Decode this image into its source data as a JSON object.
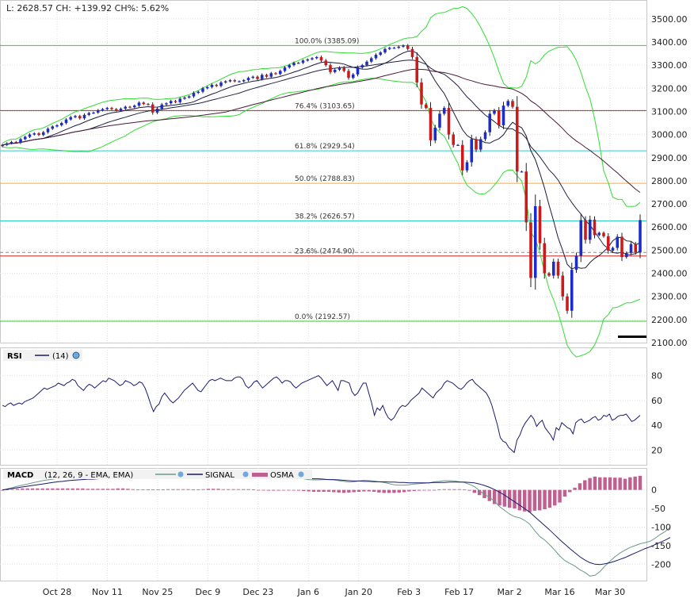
{
  "header": {
    "quote_text": "L: 2628.57 CH: +139.92 CH%: 5.62%"
  },
  "chart_data": [
    {
      "type": "candlestick",
      "panel": "price",
      "y_ticks": [
        "3500.00",
        "3400.00",
        "3300.00",
        "3200.00",
        "3100.00",
        "3000.00",
        "2900.00",
        "2800.00",
        "2700.00",
        "2600.00",
        "2500.00",
        "2400.00",
        "2300.00",
        "2200.00",
        "2100.00"
      ],
      "ylim": [
        2100,
        3520
      ],
      "fib_levels": [
        {
          "label": "100.0% (3385.09)",
          "value": 3385.09,
          "color": "#2ecc2e"
        },
        {
          "label": "76.4% (3103.65)",
          "value": 3103.65,
          "color": "#cc2222"
        },
        {
          "label": "61.8% (2929.54)",
          "value": 2929.54,
          "color": "#33cccc"
        },
        {
          "label": "50.0% (2788.83)",
          "value": 2788.83,
          "color": "#ffaa22"
        },
        {
          "label": "38.2% (2626.57)",
          "value": 2626.57,
          "color": "#33cccc"
        },
        {
          "label": "23.6% (2474.90)",
          "value": 2474.9,
          "color": "#cc2222"
        },
        {
          "label": "0.0% (2192.57)",
          "value": 2192.57,
          "color": "#2ecc2e"
        }
      ],
      "x_ticks": [
        "Oct 28",
        "Nov 11",
        "Nov 25",
        "Dec 9",
        "Dec 23",
        "Jan 6",
        "Jan 20",
        "Feb 3",
        "Feb 17",
        "Mar 2",
        "Mar 16",
        "Mar 30"
      ],
      "close": [
        2955,
        2962,
        2968,
        2965,
        2980,
        2990,
        3000,
        3005,
        2998,
        3010,
        3025,
        3035,
        3040,
        3050,
        3065,
        3075,
        3080,
        3070,
        3085,
        3093,
        3095,
        3105,
        3110,
        3115,
        3110,
        3105,
        3112,
        3120,
        3118,
        3125,
        3138,
        3132,
        3130,
        3095,
        3112,
        3130,
        3135,
        3145,
        3140,
        3155,
        3160,
        3165,
        3180,
        3185,
        3200,
        3205,
        3215,
        3210,
        3225,
        3230,
        3235,
        3230,
        3230,
        3235,
        3245,
        3250,
        3240,
        3258,
        3250,
        3265,
        3262,
        3275,
        3290,
        3300,
        3310,
        3310,
        3320,
        3325,
        3330,
        3335,
        3320,
        3300,
        3270,
        3280,
        3290,
        3275,
        3245,
        3260,
        3290,
        3300,
        3315,
        3330,
        3345,
        3355,
        3370,
        3375,
        3375,
        3380,
        3385,
        3370,
        3335,
        3225,
        3130,
        3115,
        2975,
        3030,
        3090,
        3115,
        3000,
        2955,
        2955,
        2845,
        2880,
        2980,
        2935,
        2980,
        3010,
        3090,
        3105,
        3040,
        3125,
        3145,
        3120,
        2840,
        2840,
        2620,
        2380,
        2690,
        2530,
        2400,
        2390,
        2450,
        2390,
        2300,
        2238,
        2415,
        2476,
        2630,
        2545,
        2632,
        2565,
        2575,
        2560,
        2498,
        2510,
        2558,
        2470,
        2488,
        2526,
        2490,
        2630
      ]
    },
    {
      "type": "line",
      "panel": "rsi",
      "legend": "RSI",
      "series_label": "(14)",
      "y_ticks": [
        "80",
        "60",
        "40",
        "20"
      ],
      "ylim": [
        8,
        90
      ],
      "values": [
        56,
        55,
        57,
        58,
        56,
        57,
        58,
        57,
        59,
        60,
        61,
        62,
        64,
        66,
        68,
        70,
        69,
        70,
        71,
        72,
        74,
        73,
        72,
        74,
        75,
        77,
        76,
        72,
        70,
        68,
        71,
        73,
        72,
        70,
        72,
        74,
        76,
        75,
        78,
        77,
        76,
        74,
        72,
        73,
        76,
        75,
        74,
        72,
        73,
        75,
        74,
        70,
        64,
        57,
        51,
        55,
        57,
        63,
        66,
        63,
        60,
        58,
        60,
        62,
        65,
        68,
        70,
        72,
        74,
        71,
        68,
        67,
        70,
        73,
        76,
        77,
        76,
        77,
        78,
        77,
        76,
        76,
        76,
        78,
        79,
        79,
        77,
        72,
        70,
        72,
        75,
        76,
        73,
        70,
        72,
        74,
        76,
        78,
        79,
        77,
        74,
        76,
        76,
        75,
        72,
        70,
        72,
        74,
        75,
        76,
        77,
        78,
        79,
        80,
        78,
        75,
        72,
        74,
        76,
        72,
        68,
        76,
        76,
        75,
        74,
        67,
        64,
        66,
        70,
        74,
        74,
        66,
        58,
        48,
        54,
        52,
        56,
        50,
        46,
        44,
        46,
        50,
        54,
        56,
        55,
        57,
        60,
        62,
        64,
        66,
        70,
        68,
        66,
        64,
        62,
        66,
        68,
        70,
        74,
        76,
        75,
        74,
        72,
        70,
        69,
        71,
        74,
        76,
        77,
        74,
        72,
        70,
        68,
        66,
        62,
        56,
        48,
        40,
        30,
        27,
        26,
        22,
        20,
        18,
        28,
        32,
        38,
        42,
        45,
        48,
        45,
        39,
        42,
        44,
        38,
        35,
        32,
        28,
        38,
        36,
        42,
        40,
        38,
        37,
        33,
        42,
        44,
        45,
        42,
        43,
        44,
        46,
        47,
        44,
        45,
        48,
        47,
        49,
        44,
        45,
        47,
        48,
        48,
        49,
        46,
        43,
        44,
        46,
        48
      ]
    },
    {
      "type": "bar+line",
      "panel": "macd",
      "legend": {
        "title": "MACD",
        "params": "(12, 26, 9 - EMA, EMA)",
        "signal_label": "SIGNAL",
        "osma_label": "OSMA"
      },
      "y_ticks": [
        "0",
        "-50",
        "-100",
        "-150",
        "-200"
      ],
      "ylim": [
        -240,
        42
      ],
      "macd": [
        0,
        3,
        6,
        10,
        13,
        16,
        19,
        22,
        25,
        27,
        29,
        31,
        33,
        34,
        35,
        35,
        34,
        33,
        33,
        34,
        36,
        38,
        39,
        40,
        39,
        36,
        33,
        32,
        33,
        35,
        36,
        36,
        36,
        38,
        40,
        41,
        40,
        38,
        36,
        38,
        42,
        44,
        43,
        41,
        40,
        40,
        41,
        42,
        41,
        40,
        37,
        34,
        32,
        30,
        31,
        32,
        33,
        33,
        33,
        32,
        30,
        28,
        27,
        27,
        28,
        28,
        27,
        25,
        23,
        21,
        22,
        24,
        26,
        25,
        24,
        22,
        20,
        17,
        14,
        13,
        13,
        14,
        16,
        17,
        18,
        19,
        22,
        23,
        25,
        25,
        24,
        22,
        20,
        15,
        9,
        -2,
        -12,
        -20,
        -30,
        -45,
        -55,
        -65,
        -72,
        -75,
        -82,
        -92,
        -110,
        -125,
        -135,
        -148,
        -162,
        -178,
        -190,
        -198,
        -205,
        -215,
        -222,
        -232,
        -230,
        -220,
        -205,
        -192,
        -180,
        -170,
        -162,
        -155,
        -150,
        -145,
        -142,
        -138,
        -130,
        -120,
        -112,
        -100
      ],
      "signal": [
        0,
        2,
        4,
        6,
        8,
        10,
        12,
        14,
        16,
        18,
        20,
        22,
        23,
        25,
        26,
        27,
        28,
        29,
        29,
        30,
        31,
        31,
        32,
        32,
        33,
        33,
        33,
        33,
        33,
        33,
        33,
        33,
        33,
        33,
        34,
        34,
        34,
        34,
        35,
        35,
        36,
        36,
        37,
        37,
        37,
        37,
        38,
        38,
        38,
        38,
        38,
        37,
        37,
        36,
        36,
        35,
        34,
        33,
        33,
        32,
        31,
        31,
        30,
        30,
        29,
        28,
        28,
        27,
        26,
        25,
        24,
        24,
        23,
        23,
        22,
        22,
        22,
        21,
        21,
        20,
        20,
        19,
        19,
        19,
        19,
        19,
        20,
        20,
        20,
        21,
        21,
        21,
        21,
        20,
        19,
        16,
        12,
        7,
        1,
        -6,
        -14,
        -23,
        -32,
        -41,
        -50,
        -60,
        -72,
        -84,
        -96,
        -108,
        -121,
        -134,
        -146,
        -158,
        -169,
        -180,
        -189,
        -196,
        -200,
        -201,
        -199,
        -196,
        -192,
        -187,
        -182,
        -176,
        -170,
        -164,
        -158,
        -153,
        -147,
        -141,
        -135,
        -128
      ],
      "osma": [
        0,
        1,
        2,
        3,
        4,
        4,
        4,
        4,
        4,
        4,
        4,
        4,
        4,
        4,
        4,
        4,
        4,
        3,
        3,
        3,
        3,
        3,
        3,
        4,
        4,
        3,
        2,
        1,
        1,
        1,
        1,
        1,
        1,
        2,
        2,
        2,
        2,
        2,
        1,
        1,
        2,
        3,
        3,
        3,
        2,
        2,
        2,
        2,
        2,
        2,
        1,
        0,
        -1,
        -2,
        -2,
        -2,
        -1,
        -1,
        -1,
        -2,
        -3,
        -4,
        -5,
        -5,
        -5,
        -5,
        -6,
        -7,
        -8,
        -7,
        -6,
        -5,
        -4,
        -4,
        -5,
        -7,
        -8,
        -8,
        -8,
        -7,
        -6,
        -4,
        -3,
        -2,
        -1,
        0,
        0,
        1,
        2,
        2,
        2,
        2,
        1,
        -2,
        -8,
        -14,
        -22,
        -30,
        -38,
        -42,
        -45,
        -48,
        -50,
        -55,
        -58,
        -60,
        -56,
        -55,
        -52,
        -48,
        -42,
        -34,
        -18,
        -6,
        6,
        18,
        26,
        32,
        36,
        34,
        34,
        34,
        33,
        33,
        30,
        34,
        36,
        38
      ]
    }
  ]
}
